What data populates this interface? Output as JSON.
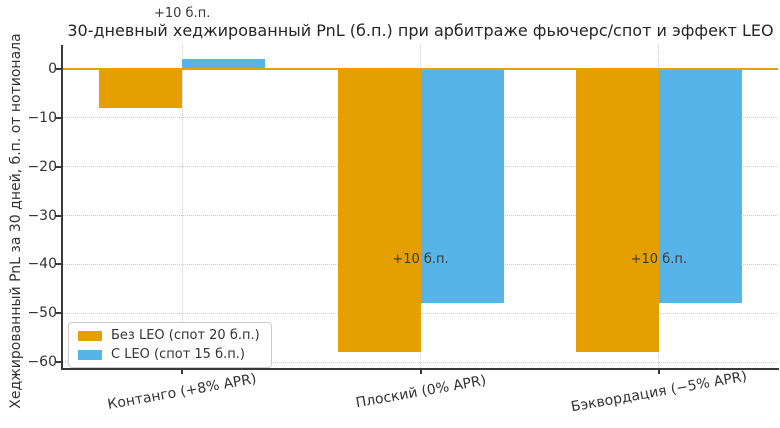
{
  "chart_data": {
    "type": "bar",
    "title": "30-дневный хеджированный PnL (б.п.) при арбитраже фьючерс/спот и эффект LEO",
    "ylabel": "Хеджированный PnL за 30 дней, б.п. от нотионала",
    "xlabel": "",
    "categories": [
      "Контанго (+8% APR)",
      "Плоский (0% APR)",
      "Бэквордация (−5% APR)"
    ],
    "series": [
      {
        "name": "Без LEO (спот 20 б.п.)",
        "color": "#E69F00",
        "values": [
          -8,
          -58,
          -58
        ]
      },
      {
        "name": "С LEO (спот 15 б.п.)",
        "color": "#56B4E9",
        "values": [
          2,
          -48,
          -48
        ]
      }
    ],
    "bar_annotations": [
      {
        "text": "+10 б.п.",
        "category_index": 0,
        "placement": "above_chart"
      },
      {
        "text": "+10 б.п.",
        "category_index": 1,
        "placement": "at_value",
        "y": -39
      },
      {
        "text": "+10 б.п.",
        "category_index": 2,
        "placement": "at_value",
        "y": -39
      }
    ],
    "ytick_values": [
      0,
      -10,
      -20,
      -30,
      -40,
      -50,
      -60
    ],
    "ytick_labels": [
      "0",
      "−10",
      "−20",
      "−30",
      "−40",
      "−50",
      "−60"
    ],
    "ylim": [
      -61.2,
      4.9
    ],
    "grid": true,
    "legend_position": "lower left",
    "colors": {
      "zero_line": "#E8A104",
      "grid": "#cbcbcb",
      "spine": "#3a3a3a",
      "tick_text": "#333333",
      "title_text": "#262626",
      "annotation_text": "#3a3a3a",
      "background": "#ffffff"
    }
  }
}
